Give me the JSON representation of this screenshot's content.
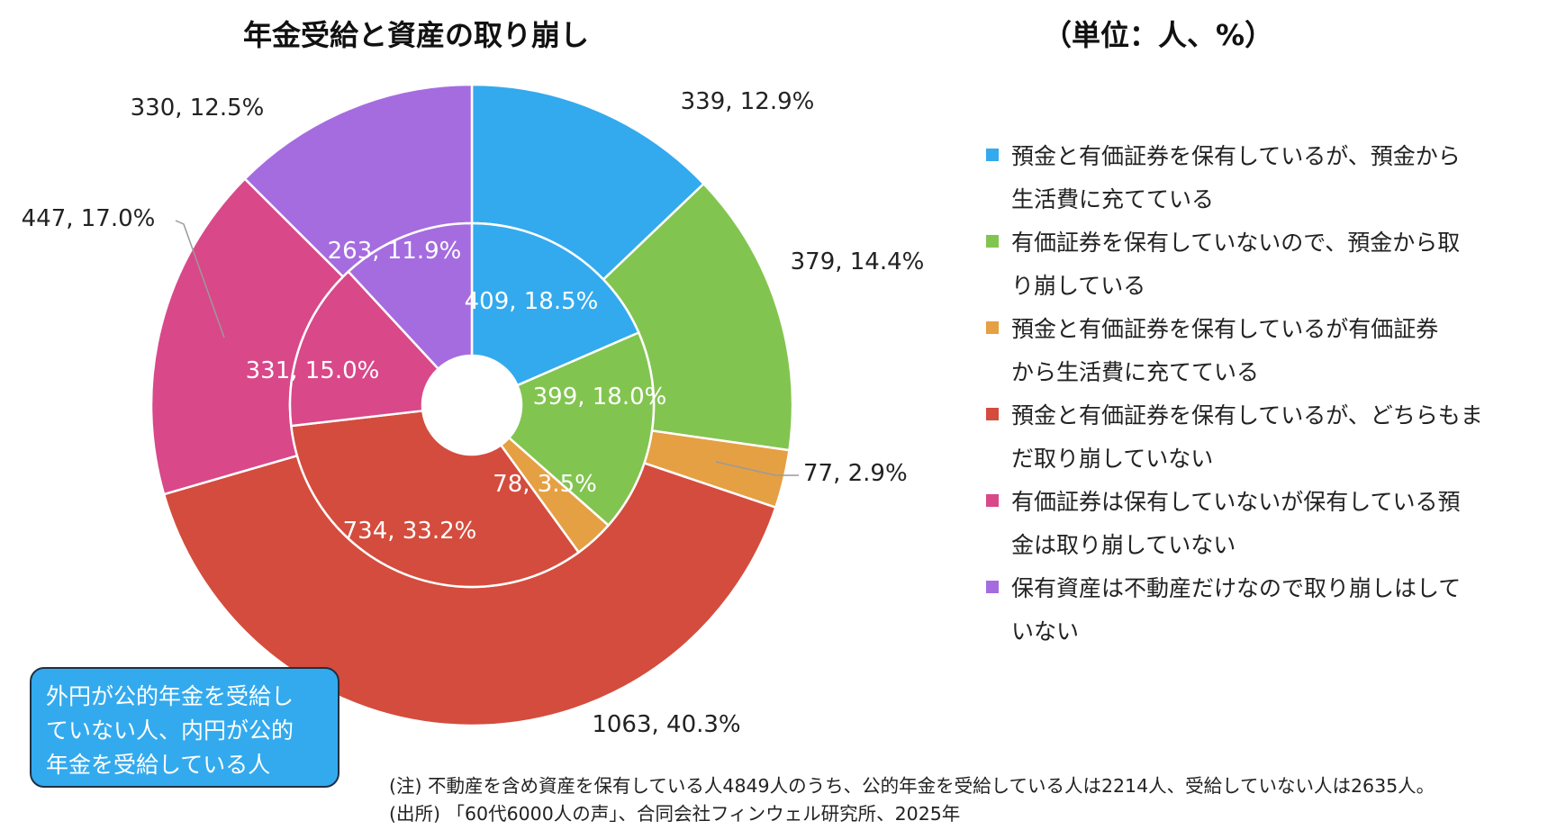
{
  "title": "年金受給と資産の取り崩し",
  "unit": "（単位：人、%）",
  "colors": {
    "blue": "#33AAEE",
    "green": "#82C450",
    "orange": "#E5A043",
    "red": "#D44C3D",
    "pink": "#D94889",
    "purple": "#A56CE0"
  },
  "chart_data": {
    "type": "pie",
    "subtype": "double-doughnut",
    "title": "年金受給と資産の取り崩し",
    "categories": [
      "預金と有価証券を保有しているが、預金から生活費に充てている",
      "有価証券を保有していないので、預金から取り崩している",
      "預金と有価証券を保有しているが有価証券から生活費に充てている",
      "預金と有価証券を保有しているが、どちらもまだ取り崩していない",
      "有価証券は保有していないが保有している預金は取り崩していない",
      "保有資産は不動産だけなので取り崩しはしていない"
    ],
    "series": [
      {
        "ring": "outer",
        "values": [
          339,
          379,
          77,
          1063,
          447,
          330
        ],
        "labels": [
          "339, 12.9%",
          "379, 14.4%",
          "77, 2.9%",
          "1063, 40.3%",
          "447, 17.0%",
          "330, 12.5%"
        ]
      },
      {
        "ring": "inner",
        "values": [
          409,
          399,
          78,
          734,
          331,
          263
        ],
        "labels": [
          "409, 18.5%",
          "399, 18.0%",
          "78, 3.5%",
          "734, 33.2%",
          "331, 15.0%",
          "263, 11.9%"
        ]
      }
    ],
    "legend_position": "right"
  },
  "legend": [
    {
      "lines": [
        "預金と有価証券を保有しているが、預金から",
        "生活費に充てている"
      ],
      "color": "#33AAEE"
    },
    {
      "lines": [
        "有価証券を保有していないので、預金から取",
        "り崩している"
      ],
      "color": "#82C450"
    },
    {
      "lines": [
        "預金と有価証券を保有しているが有価証券",
        "から生活費に充てている"
      ],
      "color": "#E5A043"
    },
    {
      "lines": [
        "預金と有価証券を保有しているが、どちらもま",
        "だ取り崩していない"
      ],
      "color": "#D44C3D"
    },
    {
      "lines": [
        "有価証券は保有していないが保有している預",
        "金は取り崩していない"
      ],
      "color": "#D94889"
    },
    {
      "lines": [
        "保有資産は不動産だけなので取り崩しはして",
        "いない"
      ],
      "color": "#A56CE0"
    }
  ],
  "callout": {
    "lines": [
      "外円が公的年金を受給し",
      "ていない人、内円が公的",
      "年金を受給している人"
    ]
  },
  "notes": [
    "(注)  不動産を含め資産を保有している人4849人のうち、公的年金を受給している人は2214人、受給していない人は2635人。",
    "(出所) 「60代6000人の声」、合同会社フィンウェル研究所、2025年"
  ]
}
